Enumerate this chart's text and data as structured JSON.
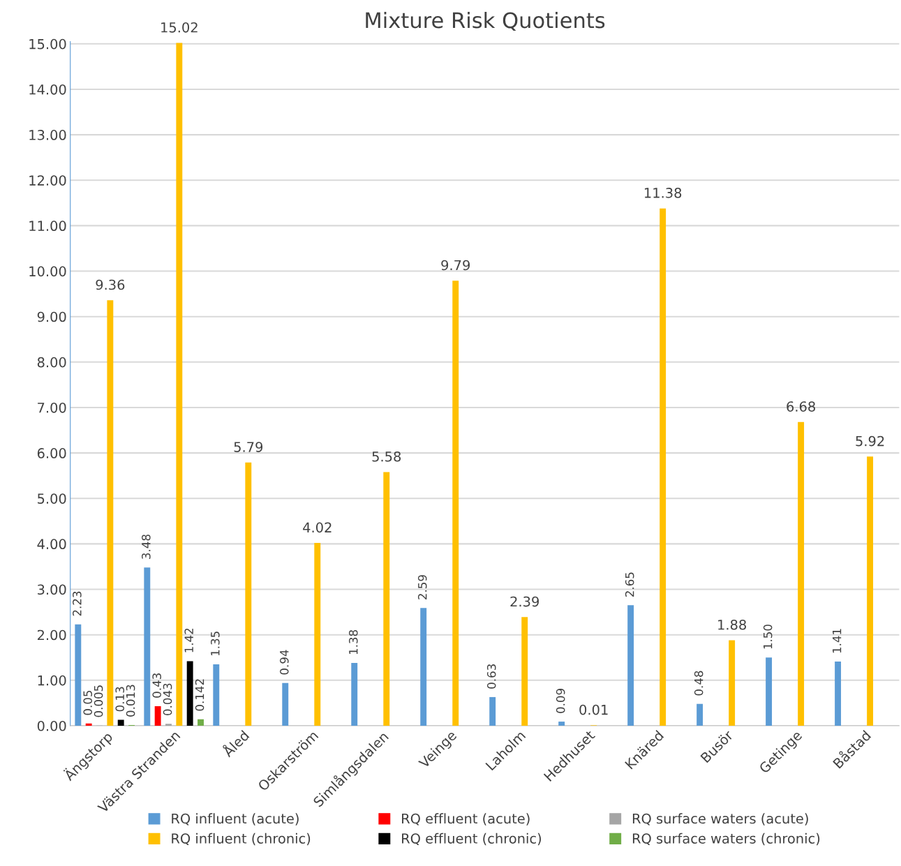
{
  "chart_data": {
    "type": "bar",
    "title": "Mixture Risk Quotients",
    "categories": [
      "Ängstorp",
      "Västra Stranden",
      "Åled",
      "Oskarström",
      "Simlångsdalen",
      "Veinge",
      "Laholm",
      "Hedhuset",
      "Knäred",
      "Busör",
      "Getinge",
      "Båstad"
    ],
    "series": [
      {
        "name": "RQ influent (acute)",
        "color": "#5b9bd5",
        "values": [
          2.23,
          3.48,
          1.35,
          0.94,
          1.38,
          2.59,
          0.63,
          0.09,
          2.65,
          0.48,
          1.5,
          1.41
        ],
        "value_labels": [
          "2.23",
          "3.48",
          "1.35",
          "0.94",
          "1.38",
          "2.59",
          "0.63",
          "0.09",
          "2.65",
          "0.48",
          "1.50",
          "1.41"
        ]
      },
      {
        "name": "RQ effluent (acute)",
        "color": "#ff0000",
        "values": [
          0.05,
          0.43,
          null,
          null,
          null,
          null,
          null,
          null,
          null,
          null,
          null,
          null
        ],
        "value_labels": [
          "0.05",
          "0.43",
          null,
          null,
          null,
          null,
          null,
          null,
          null,
          null,
          null,
          null
        ]
      },
      {
        "name": "RQ surface waters (acute)",
        "color": "#a5a5a5",
        "values": [
          0.005,
          0.043,
          null,
          null,
          null,
          null,
          null,
          null,
          null,
          null,
          null,
          null
        ],
        "value_labels": [
          "0.005",
          "0.043",
          null,
          null,
          null,
          null,
          null,
          null,
          null,
          null,
          null,
          null
        ]
      },
      {
        "name": "RQ influent (chronic)",
        "color": "#ffc000",
        "values": [
          9.36,
          15.02,
          5.79,
          4.02,
          5.58,
          9.79,
          2.39,
          0.01,
          11.38,
          1.88,
          6.68,
          5.92
        ],
        "value_labels": [
          "9.36",
          "15.02",
          "5.79",
          "4.02",
          "5.58",
          "9.79",
          "2.39",
          "0.01",
          "11.38",
          "1.88",
          "6.68",
          "5.92"
        ]
      },
      {
        "name": "RQ effluent (chronic)",
        "color": "#000000",
        "values": [
          0.13,
          1.42,
          null,
          null,
          null,
          null,
          null,
          null,
          null,
          null,
          null,
          null
        ],
        "value_labels": [
          "0.13",
          "1.42",
          null,
          null,
          null,
          null,
          null,
          null,
          null,
          null,
          null,
          null
        ]
      },
      {
        "name": "RQ surface waters (chronic)",
        "color": "#70ad47",
        "values": [
          0.013,
          0.142,
          null,
          null,
          null,
          null,
          null,
          null,
          null,
          null,
          null,
          null
        ],
        "value_labels": [
          "0.013",
          "0.142",
          null,
          null,
          null,
          null,
          null,
          null,
          null,
          null,
          null,
          null
        ]
      }
    ],
    "ylim": [
      0,
      15.05
    ],
    "yticks": [
      {
        "value": 0,
        "label": "0.00"
      },
      {
        "value": 1,
        "label": "1.00"
      },
      {
        "value": 2,
        "label": "2.00"
      },
      {
        "value": 3,
        "label": "3.00"
      },
      {
        "value": 4,
        "label": "4.00"
      },
      {
        "value": 5,
        "label": "5.00"
      },
      {
        "value": 6,
        "label": "6.00"
      },
      {
        "value": 7,
        "label": "7.00"
      },
      {
        "value": 8,
        "label": "8.00"
      },
      {
        "value": 9,
        "label": "9.00"
      },
      {
        "value": 10,
        "label": "10.00"
      },
      {
        "value": 11,
        "label": "11.00"
      },
      {
        "value": 12,
        "label": "12.00"
      },
      {
        "value": 13,
        "label": "13.00"
      },
      {
        "value": 14,
        "label": "14.00"
      },
      {
        "value": 15,
        "label": "15.00"
      }
    ],
    "grid": "y",
    "legend": "bottom"
  }
}
